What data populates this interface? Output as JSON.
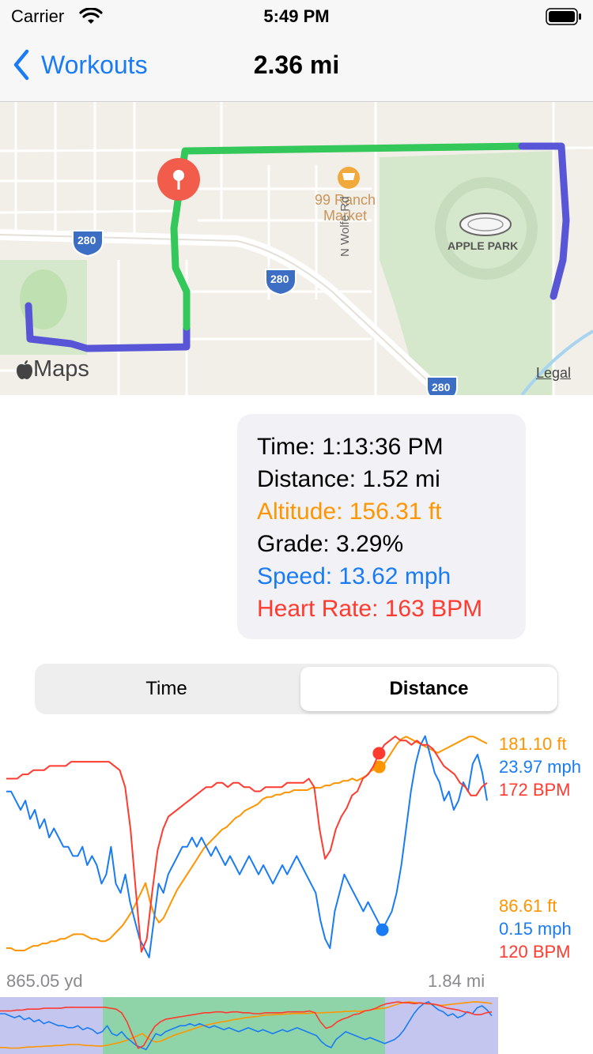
{
  "status": {
    "carrier": "Carrier",
    "time": "5:49 PM"
  },
  "nav": {
    "back_label": "Workouts",
    "title": "2.36 mi"
  },
  "map": {
    "labels": {
      "market": "99 Ranch\nMarket",
      "park": "APPLE PARK",
      "road": "N Wolfe Rd",
      "shield": "280",
      "legal": "Legal",
      "logo": "Maps"
    },
    "colors": {
      "route_green": "#34c759",
      "route_blue": "#5856d6",
      "pin": "#f25c4b"
    }
  },
  "info": {
    "time": "Time: 1:13:36 PM",
    "distance": "Distance: 1.52 mi",
    "altitude": "Altitude: 156.31 ft",
    "grade": "Grade: 3.29%",
    "speed": "Speed: 13.62 mph",
    "heart_rate": "Heart Rate: 163 BPM"
  },
  "segment": {
    "options": [
      "Time",
      "Distance"
    ],
    "selected": "Distance"
  },
  "chart_data": {
    "type": "line",
    "x_start_label": "865.05 yd",
    "x_end_label": "1.84 mi",
    "max_labels": {
      "altitude": "181.10 ft",
      "speed": "23.97 mph",
      "heart_rate": "172 BPM"
    },
    "min_labels": {
      "altitude": "86.61 ft",
      "speed": "0.15 mph",
      "heart_rate": "120 BPM"
    },
    "colors": {
      "altitude": "#ff9500",
      "speed": "#1a7cf5",
      "heart_rate": "#ff3b30"
    },
    "series": [
      {
        "name": "altitude",
        "range": [
          86.61,
          181.1
        ],
        "values": [
          90,
          90,
          89,
          89,
          89,
          90,
          91,
          91,
          92,
          92,
          93,
          93,
          94,
          94,
          95,
          96,
          96,
          96,
          95,
          94,
          94,
          93,
          93,
          94,
          96,
          98,
          100,
          103,
          106,
          110,
          114,
          118,
          110,
          104,
          101,
          103,
          107,
          111,
          115,
          118,
          121,
          124,
          127,
          130,
          133,
          135,
          137,
          139,
          141,
          142,
          144,
          146,
          147,
          149,
          150,
          151,
          152,
          154,
          155,
          155,
          156,
          156,
          157,
          157,
          158,
          158,
          158,
          158,
          159,
          159,
          159,
          160,
          160,
          161,
          161,
          162,
          162,
          163,
          162,
          163,
          164,
          166,
          167,
          168,
          169,
          172,
          175,
          178,
          180,
          181,
          180,
          179,
          178,
          177,
          176,
          175,
          174,
          175,
          176,
          177,
          178,
          179,
          180,
          181,
          181,
          180,
          179,
          178
        ]
      },
      {
        "name": "speed",
        "range": [
          0.15,
          23.97
        ],
        "values": [
          18,
          18,
          17,
          16,
          17,
          15,
          16,
          14,
          15,
          13,
          14,
          13,
          12,
          12,
          11,
          11,
          12,
          10,
          11,
          10,
          8,
          9,
          12,
          8,
          7,
          9,
          6,
          4,
          2,
          1,
          0,
          4,
          8,
          7,
          9,
          10,
          11,
          12,
          12,
          13,
          12,
          13,
          12,
          11,
          12,
          11,
          10,
          11,
          10,
          9,
          10,
          11,
          10,
          9,
          10,
          9,
          8,
          9,
          10,
          9,
          10,
          11,
          10,
          9,
          8,
          7,
          4,
          2,
          1,
          5,
          7,
          9,
          8,
          7,
          6,
          5,
          6,
          5,
          4,
          3,
          4,
          5,
          7,
          10,
          14,
          18,
          21,
          23,
          24,
          22,
          20,
          19,
          17,
          18,
          16,
          17,
          19,
          18,
          21,
          22,
          20,
          17
        ]
      },
      {
        "name": "heart_rate",
        "range": [
          120,
          172
        ],
        "values": [
          162,
          162,
          162,
          163,
          163,
          164,
          164,
          164,
          165,
          165,
          165,
          165,
          166,
          166,
          166,
          166,
          166,
          166,
          166,
          166,
          165,
          164,
          160,
          150,
          135,
          121,
          124,
          135,
          145,
          150,
          153,
          154,
          155,
          156,
          157,
          158,
          159,
          160,
          160,
          161,
          161,
          160,
          161,
          161,
          160,
          160,
          159,
          159,
          160,
          160,
          160,
          160,
          161,
          161,
          161,
          161,
          162,
          160,
          150,
          143,
          145,
          150,
          153,
          155,
          158,
          159,
          162,
          163,
          165,
          168,
          170,
          171,
          172,
          171,
          171,
          170,
          171,
          170,
          170,
          169,
          167,
          165,
          164,
          163,
          161,
          160,
          158,
          158,
          160,
          161
        ]
      }
    ]
  },
  "overview": {
    "colors": {
      "blue_zone": "#c5c6ef",
      "green_zone": "#8fd4a8"
    }
  }
}
